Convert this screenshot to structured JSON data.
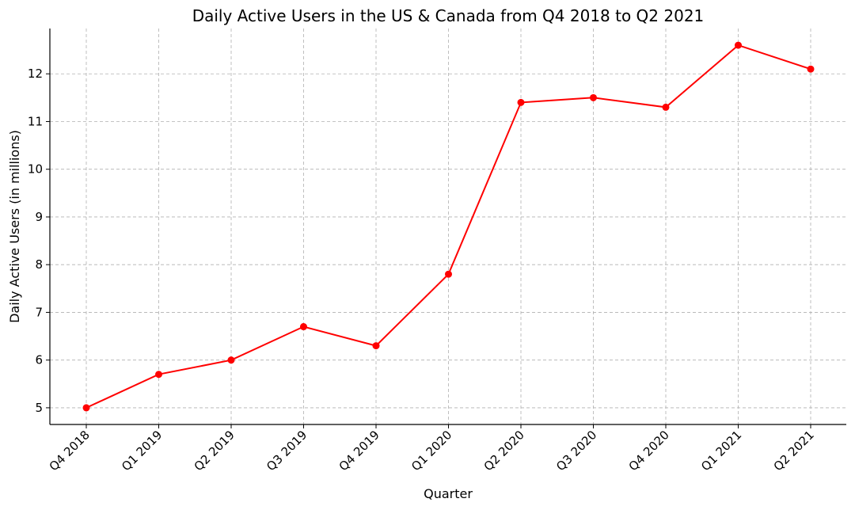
{
  "chart_data": {
    "type": "line",
    "title": "Daily Active Users in the US & Canada from Q4 2018 to Q2 2021",
    "xlabel": "Quarter",
    "ylabel": "Daily Active Users (in millions)",
    "categories": [
      "Q4 2018",
      "Q1 2019",
      "Q2 2019",
      "Q3 2019",
      "Q4 2019",
      "Q1 2020",
      "Q2 2020",
      "Q3 2020",
      "Q4 2020",
      "Q1 2021",
      "Q2 2021"
    ],
    "series": [
      {
        "values": [
          5.0,
          5.7,
          6.0,
          6.7,
          6.3,
          7.8,
          11.4,
          11.5,
          11.3,
          12.6,
          12.1
        ]
      }
    ],
    "ylim": [
      4.65,
      12.95
    ],
    "yticks": [
      5,
      6,
      7,
      8,
      9,
      10,
      11,
      12
    ],
    "grid": true,
    "line_color": "#ff0000"
  }
}
